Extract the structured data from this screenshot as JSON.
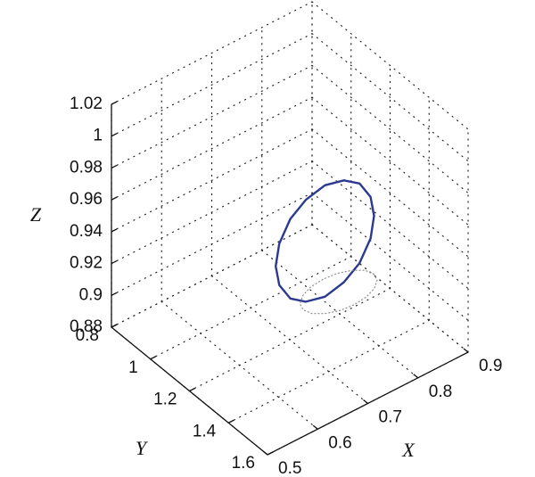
{
  "chart_data": {
    "type": "line3d",
    "xlabel": "X",
    "ylabel": "Y",
    "zlabel": "Z",
    "xlim": [
      0.5,
      0.9
    ],
    "ylim": [
      0.8,
      1.6
    ],
    "zlim": [
      0.88,
      1.02
    ],
    "xticks": [
      0.5,
      0.6,
      0.7,
      0.8,
      0.9
    ],
    "yticks": [
      0.8,
      1,
      1.2,
      1.4,
      1.6
    ],
    "zticks": [
      0.88,
      0.9,
      0.92,
      0.94,
      0.96,
      0.98,
      1,
      1.02
    ],
    "grid": true,
    "series": [
      {
        "color": "#2b3990",
        "style": "solid",
        "x": [
          0.798,
          0.791,
          0.769,
          0.738,
          0.7,
          0.662,
          0.631,
          0.609,
          0.602,
          0.609,
          0.631,
          0.662,
          0.7,
          0.738,
          0.769,
          0.791
        ],
        "y": [
          1.38,
          1.38,
          1.38,
          1.38,
          1.38,
          1.38,
          1.38,
          1.38,
          1.38,
          1.38,
          1.38,
          1.38,
          1.38,
          1.38,
          1.38,
          1.38
        ],
        "z": [
          0.96,
          0.973,
          0.985,
          0.992,
          0.995,
          0.992,
          0.985,
          0.973,
          0.96,
          0.947,
          0.935,
          0.928,
          0.925,
          0.928,
          0.935,
          0.947
        ]
      },
      {
        "color": "#8a8a8a",
        "style": "dotted",
        "x": [
          0.77,
          0.765,
          0.749,
          0.727,
          0.7,
          0.673,
          0.651,
          0.635,
          0.63,
          0.635,
          0.651,
          0.673,
          0.7,
          0.727,
          0.749,
          0.765
        ],
        "y": [
          1.45,
          1.481,
          1.507,
          1.524,
          1.53,
          1.524,
          1.507,
          1.481,
          1.45,
          1.419,
          1.393,
          1.376,
          1.37,
          1.376,
          1.393,
          1.419
        ],
        "z": [
          0.935,
          0.935,
          0.935,
          0.935,
          0.935,
          0.935,
          0.935,
          0.935,
          0.935,
          0.935,
          0.935,
          0.935,
          0.935,
          0.935,
          0.935,
          0.935
        ]
      }
    ]
  }
}
